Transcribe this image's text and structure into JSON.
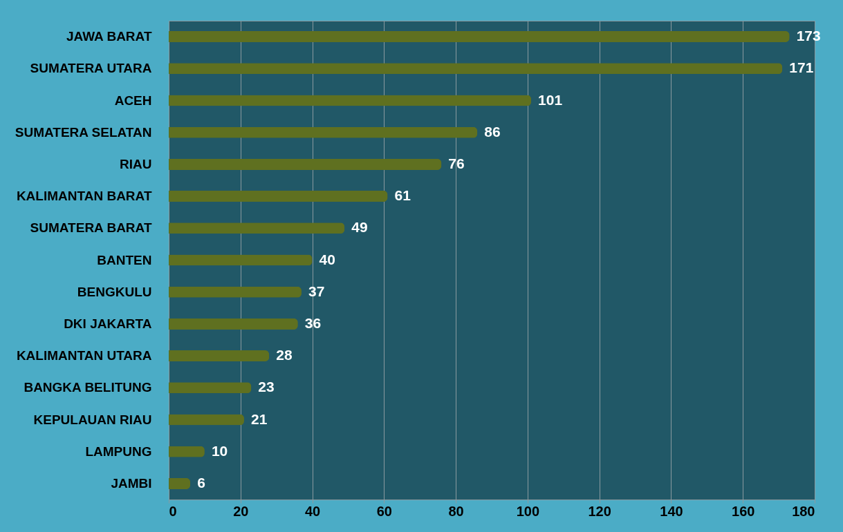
{
  "chart_data": {
    "type": "bar",
    "orientation": "horizontal",
    "categories": [
      "JAWA BARAT",
      "SUMATERA UTARA",
      "ACEH",
      "SUMATERA SELATAN",
      "RIAU",
      "KALIMANTAN BARAT",
      "SUMATERA BARAT",
      "BANTEN",
      "BENGKULU",
      "DKI JAKARTA",
      "KALIMANTAN UTARA",
      "BANGKA BELITUNG",
      "KEPULAUAN RIAU",
      "LAMPUNG",
      "JAMBI"
    ],
    "values": [
      173,
      171,
      101,
      86,
      76,
      61,
      49,
      40,
      37,
      36,
      28,
      23,
      21,
      10,
      6
    ],
    "color": "#5f7020",
    "xlim": [
      0,
      180
    ],
    "xticks": [
      0,
      20,
      40,
      60,
      80,
      100,
      120,
      140,
      160,
      180
    ],
    "grid": "x",
    "data_labels": true
  }
}
